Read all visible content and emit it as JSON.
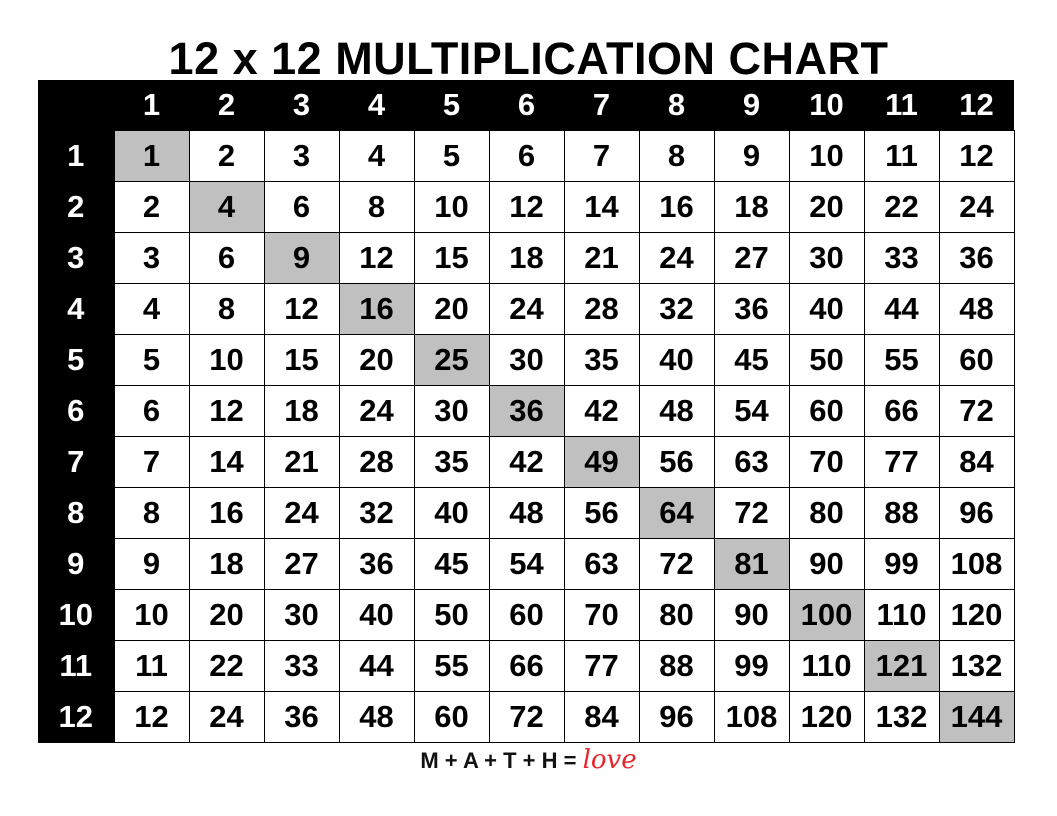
{
  "title": "12 x 12 MULTIPLICATION CHART",
  "chart_data": {
    "type": "table",
    "title": "12 x 12 MULTIPLICATION CHART",
    "column_headers": [
      "1",
      "2",
      "3",
      "4",
      "5",
      "6",
      "7",
      "8",
      "9",
      "10",
      "11",
      "12"
    ],
    "row_headers": [
      "1",
      "2",
      "3",
      "4",
      "5",
      "6",
      "7",
      "8",
      "9",
      "10",
      "11",
      "12"
    ],
    "rows": [
      [
        1,
        2,
        3,
        4,
        5,
        6,
        7,
        8,
        9,
        10,
        11,
        12
      ],
      [
        2,
        4,
        6,
        8,
        10,
        12,
        14,
        16,
        18,
        20,
        22,
        24
      ],
      [
        3,
        6,
        9,
        12,
        15,
        18,
        21,
        24,
        27,
        30,
        33,
        36
      ],
      [
        4,
        8,
        12,
        16,
        20,
        24,
        28,
        32,
        36,
        40,
        44,
        48
      ],
      [
        5,
        10,
        15,
        20,
        25,
        30,
        35,
        40,
        45,
        50,
        55,
        60
      ],
      [
        6,
        12,
        18,
        24,
        30,
        36,
        42,
        48,
        54,
        60,
        66,
        72
      ],
      [
        7,
        14,
        21,
        28,
        35,
        42,
        49,
        56,
        63,
        70,
        77,
        84
      ],
      [
        8,
        16,
        24,
        32,
        40,
        48,
        56,
        64,
        72,
        80,
        88,
        96
      ],
      [
        9,
        18,
        27,
        36,
        45,
        54,
        63,
        72,
        81,
        90,
        99,
        108
      ],
      [
        10,
        20,
        30,
        40,
        50,
        60,
        70,
        80,
        90,
        100,
        110,
        120
      ],
      [
        11,
        22,
        33,
        44,
        55,
        66,
        77,
        88,
        99,
        110,
        121,
        132
      ],
      [
        12,
        24,
        36,
        48,
        60,
        72,
        84,
        96,
        108,
        120,
        132,
        144
      ]
    ],
    "highlight": "diagonal",
    "colors": {
      "header_bg": "#000000",
      "header_text": "#ffffff",
      "diagonal_bg": "#c0c0c0"
    }
  },
  "footer": {
    "equation": "M + A + T + H =",
    "love": "love",
    "love_color": "#e8242c"
  }
}
